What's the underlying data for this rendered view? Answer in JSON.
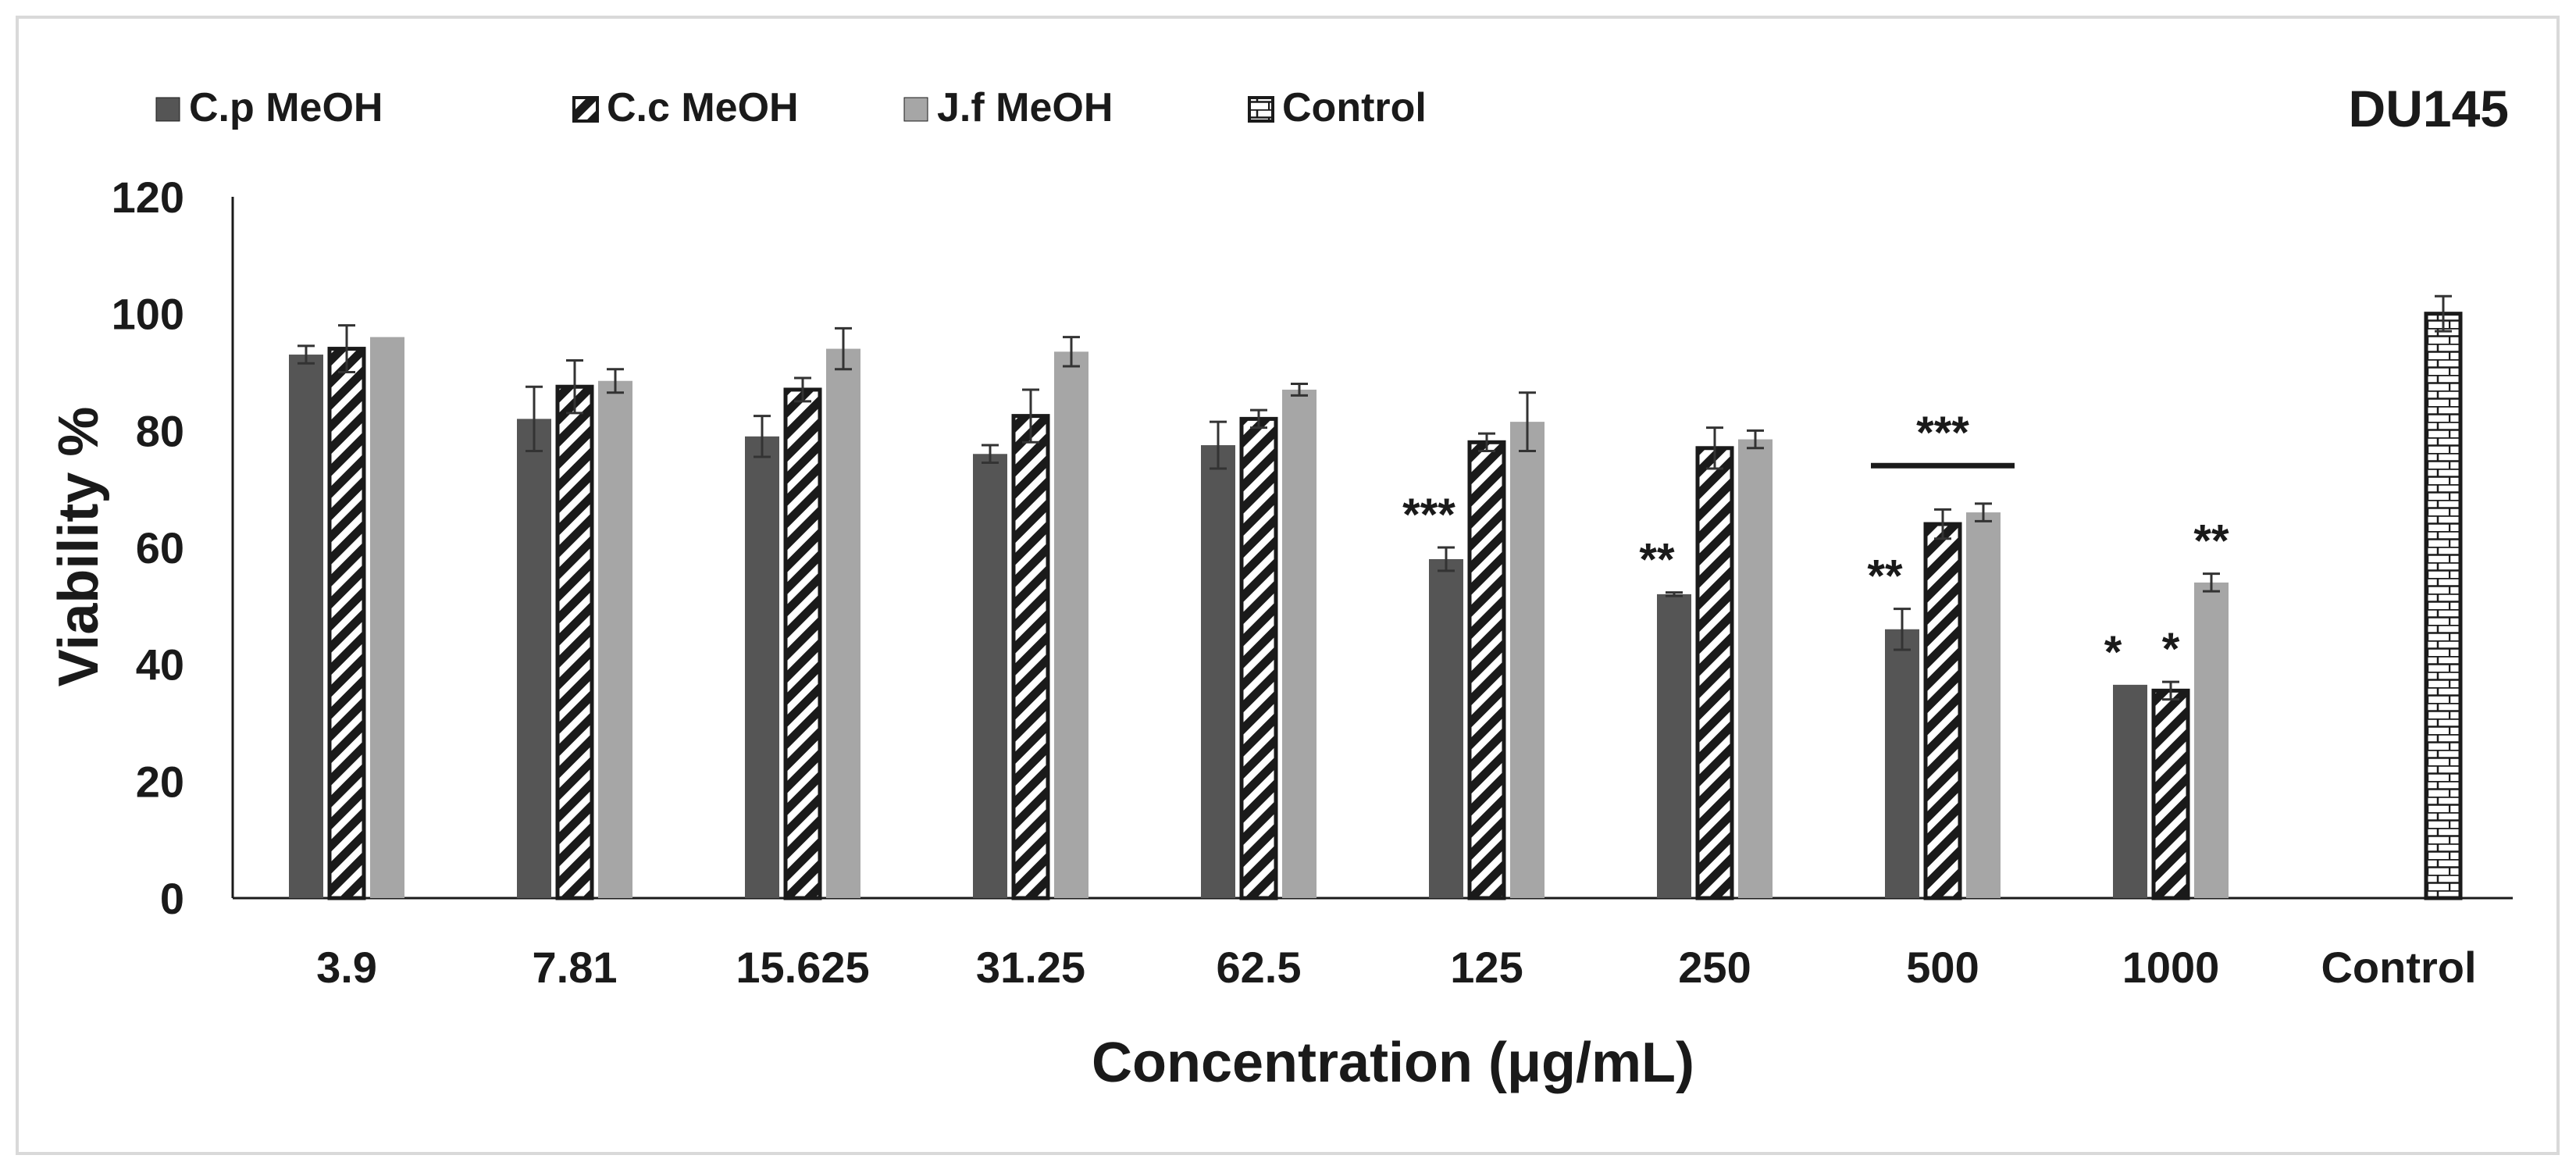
{
  "chart_data": {
    "type": "bar",
    "title": "DU145",
    "xlabel": "Concentration (μg/mL)",
    "ylabel": "Viability %",
    "ylim": [
      0,
      120
    ],
    "yticks": [
      "0",
      "20",
      "40",
      "60",
      "80",
      "100",
      "120"
    ],
    "categories": [
      "3.9",
      "7.81",
      "15.625",
      "31.25",
      "62.5",
      "125",
      "250",
      "500",
      "1000",
      "Control"
    ],
    "legend_position": "top-left",
    "grid": false,
    "series": [
      {
        "name": "C.p MeOH",
        "color": "#555555",
        "pattern": "solid",
        "values": [
          93,
          82,
          79,
          76,
          77.5,
          58,
          52,
          46,
          36.5,
          null
        ],
        "errors": [
          1.5,
          5.5,
          3.5,
          1.5,
          4,
          2,
          0.3,
          3.5,
          0,
          null
        ],
        "annotations": [
          "",
          "",
          "",
          "",
          "",
          "***",
          "**",
          "**",
          "*",
          ""
        ]
      },
      {
        "name": "C.c MeOH",
        "color": "#ffffff",
        "pattern": "diagonal-stripes",
        "values": [
          94,
          87.5,
          87,
          82.5,
          82,
          78,
          77,
          64,
          35.5,
          null
        ],
        "errors": [
          4,
          4.5,
          2,
          4.5,
          1.5,
          1.5,
          3.5,
          2.5,
          1.5,
          null
        ],
        "annotations": [
          "",
          "",
          "",
          "",
          "",
          "",
          "",
          "",
          "*",
          ""
        ]
      },
      {
        "name": "J.f MeOH",
        "color": "#a6a6a6",
        "pattern": "solid",
        "values": [
          96,
          88.5,
          94,
          93.5,
          87,
          81.5,
          78.5,
          66,
          54,
          null
        ],
        "errors": [
          0,
          2,
          3.5,
          2.5,
          1,
          5,
          1.5,
          1.5,
          1.5,
          null
        ],
        "annotations": [
          "",
          "",
          "",
          "",
          "",
          "",
          "",
          "",
          "**",
          ""
        ]
      },
      {
        "name": "Control",
        "color": "#ffffff",
        "pattern": "brick",
        "values": [
          null,
          null,
          null,
          null,
          null,
          null,
          null,
          null,
          null,
          100
        ],
        "errors": [
          null,
          null,
          null,
          null,
          null,
          null,
          null,
          null,
          null,
          3
        ],
        "annotations": [
          "",
          "",
          "",
          "",
          "",
          "",
          "",
          "",
          "",
          ""
        ]
      }
    ],
    "group_annotation": {
      "category": "500",
      "label": "***",
      "y": 74
    }
  }
}
